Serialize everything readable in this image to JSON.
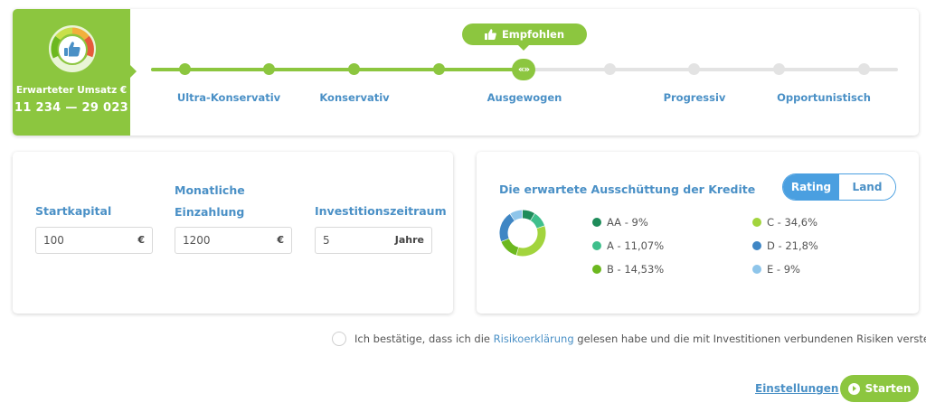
{
  "revenue": {
    "label": "Erwarteter Umsatz €",
    "range": "11 234 — 29 023"
  },
  "recommendation": {
    "label": "Empfohlen"
  },
  "slider": {
    "handle_symbol": "«»",
    "labels": [
      "Ultra-Konservativ",
      "Konservativ",
      "Ausgewogen",
      "Progressiv",
      "Opportunistisch"
    ],
    "selected": "Ausgewogen"
  },
  "inputs": {
    "start_capital": {
      "label": "Startkapital",
      "value": "100",
      "unit": "€"
    },
    "monthly": {
      "label_line1": "Monatliche",
      "label_line2": "Einzahlung",
      "value": "1200",
      "unit": "€"
    },
    "period": {
      "label": "Investitionszeitraum",
      "value": "5",
      "unit": "Jahre"
    }
  },
  "distribution": {
    "title": "Die erwartete Ausschüttung der Kredite",
    "toggle": {
      "rating": "Rating",
      "land": "Land",
      "active": "Rating"
    },
    "items": [
      {
        "label": "AA - 9%",
        "value": 9,
        "color": "#1e8c5a"
      },
      {
        "label": "A - 11,07%",
        "value": 11.07,
        "color": "#3fbf8c"
      },
      {
        "label": "B - 14,53%",
        "value": 14.53,
        "color": "#6cb81f"
      },
      {
        "label": "C - 34,6%",
        "value": 34.6,
        "color": "#a2d43d"
      },
      {
        "label": "D - 21,8%",
        "value": 21.8,
        "color": "#3f86c4"
      },
      {
        "label": "E - 9%",
        "value": 9,
        "color": "#8ec5ea"
      }
    ]
  },
  "confirmation": {
    "before": "Ich bestätige, dass ich die",
    "link": "Risikoerklärung",
    "after": "gelesen habe und die mit Investitionen verbundenen Risiken verstehe."
  },
  "footer": {
    "settings": "Einstellungen",
    "start": "Starten"
  },
  "colors": {
    "green": "#8cc63f",
    "blue": "#4a90c6",
    "toggle_blue": "#4a9fe0"
  }
}
